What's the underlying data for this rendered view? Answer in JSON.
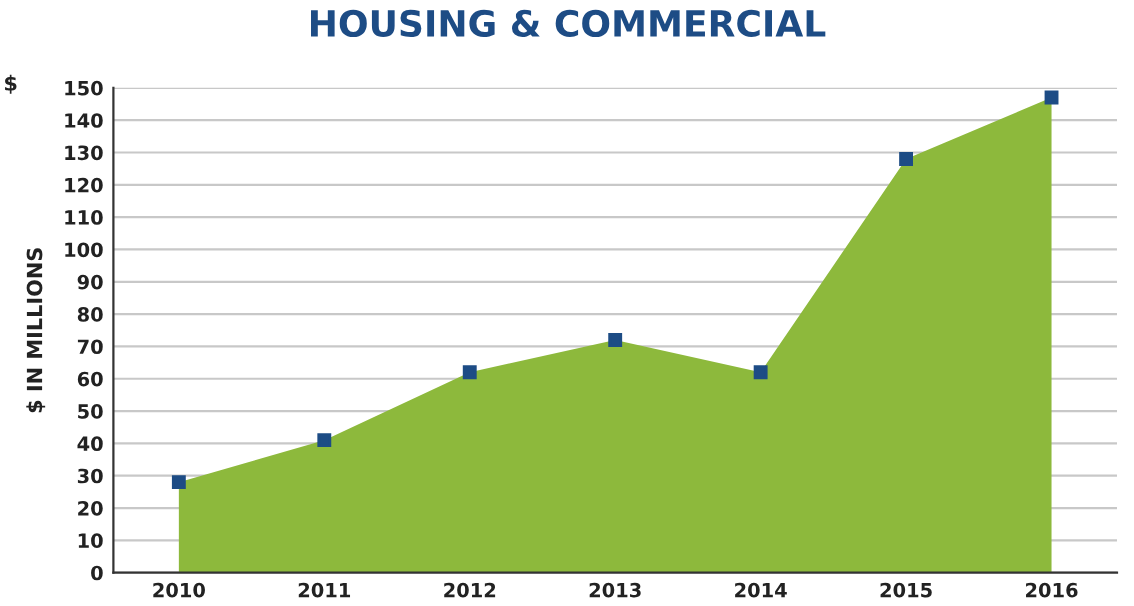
{
  "chart_data": {
    "type": "area",
    "title": "HOUSING & COMMERCIAL",
    "ylabel": "$ IN MILLIONS",
    "annotations": [
      "$"
    ],
    "categories": [
      "2010",
      "2011",
      "2012",
      "2013",
      "2014",
      "2015",
      "2016"
    ],
    "series": [
      {
        "color": "#8db93c",
        "values": [
          28,
          41,
          62,
          72,
          62,
          128,
          147
        ]
      }
    ],
    "ylim": [
      0,
      150
    ],
    "yticks": [
      0,
      10,
      20,
      30,
      40,
      50,
      60,
      70,
      80,
      90,
      100,
      110,
      120,
      130,
      140,
      150
    ],
    "grid": "y",
    "marker": "square"
  }
}
